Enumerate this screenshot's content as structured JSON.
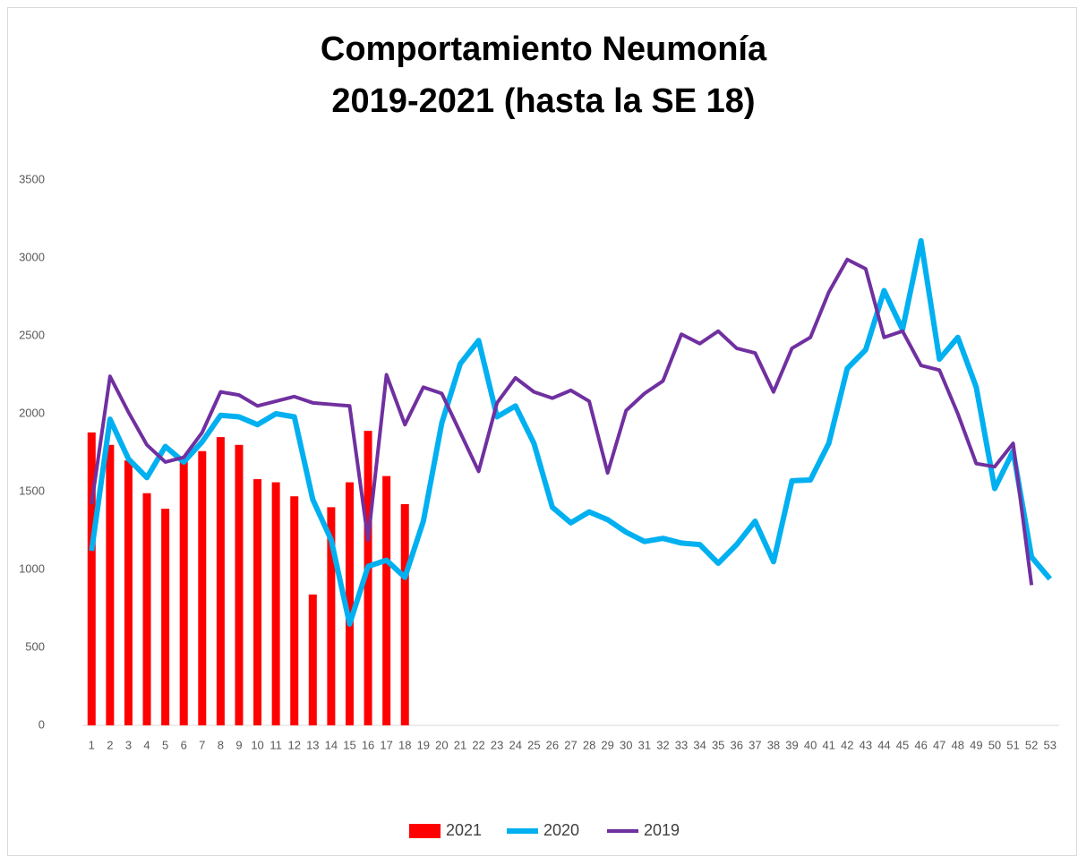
{
  "chart_data": {
    "type": "combo",
    "title": [
      "Comportamiento Neumonía",
      "2019-2021 (hasta la SE 18)"
    ],
    "categories": [
      1,
      2,
      3,
      4,
      5,
      6,
      7,
      8,
      9,
      10,
      11,
      12,
      13,
      14,
      15,
      16,
      17,
      18,
      19,
      20,
      21,
      22,
      23,
      24,
      25,
      26,
      27,
      28,
      29,
      30,
      31,
      32,
      33,
      34,
      35,
      36,
      37,
      38,
      39,
      40,
      41,
      42,
      43,
      44,
      45,
      46,
      47,
      48,
      49,
      50,
      51,
      52,
      53
    ],
    "series": [
      {
        "name": "2021",
        "type": "bar",
        "color": "#ff0000",
        "values": [
          1880,
          1800,
          1700,
          1490,
          1390,
          1700,
          1760,
          1850,
          1800,
          1580,
          1560,
          1470,
          840,
          1400,
          1560,
          1890,
          1600,
          1420,
          null,
          null,
          null,
          null,
          null,
          null,
          null,
          null,
          null,
          null,
          null,
          null,
          null,
          null,
          null,
          null,
          null,
          null,
          null,
          null,
          null,
          null,
          null,
          null,
          null,
          null,
          null,
          null,
          null,
          null,
          null,
          null,
          null,
          null,
          null
        ]
      },
      {
        "name": "2020",
        "type": "line",
        "color": "#00b0f0",
        "values": [
          1120,
          1965,
          1710,
          1590,
          1790,
          1690,
          1820,
          1990,
          1980,
          1930,
          2000,
          1980,
          1450,
          1190,
          650,
          1020,
          1060,
          950,
          1310,
          1940,
          2320,
          2470,
          1980,
          2050,
          1810,
          1400,
          1300,
          1370,
          1320,
          1240,
          1180,
          1200,
          1170,
          1160,
          1040,
          1160,
          1310,
          1050,
          1570,
          1575,
          1810,
          2290,
          2410,
          2790,
          2540,
          3110,
          2350,
          2490,
          2170,
          1520,
          1760,
          1080,
          940
        ]
      },
      {
        "name": "2019",
        "type": "line",
        "color": "#7030a0",
        "values": [
          1420,
          2240,
          2010,
          1800,
          1690,
          1720,
          1880,
          2140,
          2120,
          2050,
          2080,
          2110,
          2070,
          2060,
          2050,
          1190,
          2250,
          1930,
          2170,
          2130,
          1880,
          1630,
          2070,
          2230,
          2140,
          2100,
          2150,
          2080,
          1620,
          2020,
          2130,
          2210,
          2510,
          2450,
          2530,
          2420,
          2390,
          2140,
          2420,
          2490,
          2780,
          2990,
          2930,
          2490,
          2530,
          2310,
          2280,
          2000,
          1680,
          1660,
          1810,
          900,
          null
        ]
      }
    ],
    "ylim": [
      0,
      3500
    ],
    "yticks": [
      0,
      500,
      1000,
      1500,
      2000,
      2500,
      3000,
      3500
    ],
    "grid": false,
    "legend": "bottom"
  }
}
